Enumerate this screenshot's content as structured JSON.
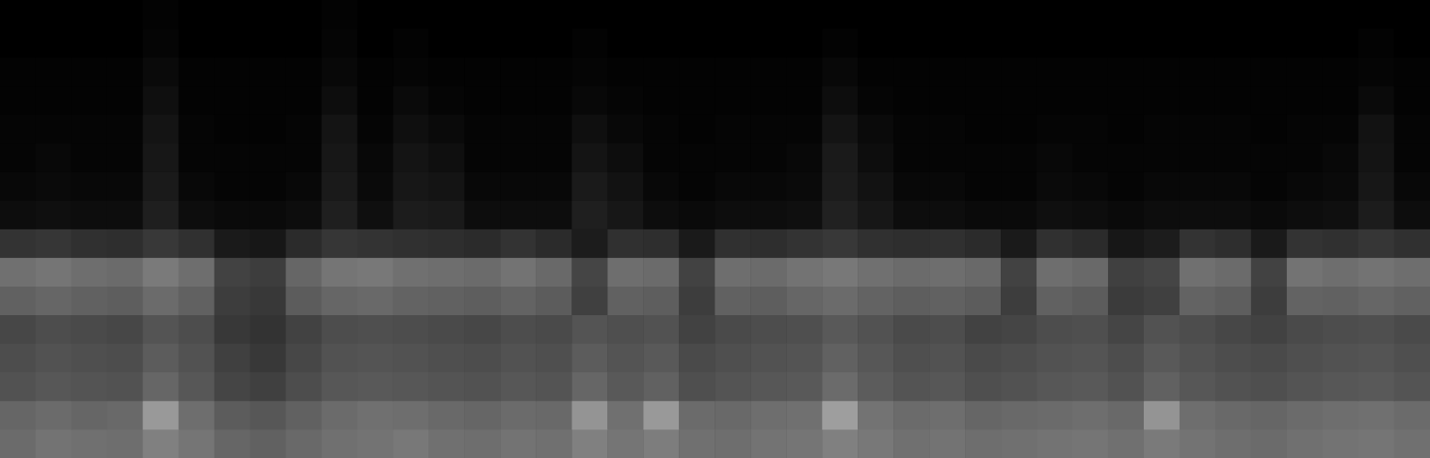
{
  "chart_data": {
    "type": "heatmap",
    "tick_labels": false,
    "grid": false,
    "color": "#ffffff",
    "value_range": [
      0,
      1
    ],
    "x": [
      0,
      1,
      2,
      3,
      4,
      5,
      6,
      7,
      8,
      9,
      10,
      11,
      12,
      13,
      14,
      15,
      16,
      17,
      18,
      19,
      20,
      21,
      22,
      23,
      24,
      25,
      26,
      27,
      28,
      29,
      30,
      31,
      32,
      33,
      34,
      35,
      36,
      37,
      38,
      39
    ],
    "y": [
      0,
      1,
      2,
      3,
      4,
      5,
      6,
      7,
      8,
      9,
      10,
      11,
      12,
      13,
      14,
      15
    ],
    "cells": [
      [
        0.42,
        0.45,
        0.44,
        0.43,
        0.5,
        0.46,
        0.4,
        0.38,
        0.41,
        0.44,
        0.45,
        0.47,
        0.44,
        0.43,
        0.45,
        0.44,
        0.5,
        0.46,
        0.49,
        0.44,
        0.43,
        0.45,
        0.46,
        0.5,
        0.47,
        0.44,
        0.45,
        0.43,
        0.44,
        0.45,
        0.46,
        0.44,
        0.48,
        0.45,
        0.43,
        0.42,
        0.44,
        0.45,
        0.46,
        0.44
      ],
      [
        0.4,
        0.42,
        0.4,
        0.41,
        0.6,
        0.43,
        0.36,
        0.34,
        0.38,
        0.42,
        0.44,
        0.43,
        0.41,
        0.4,
        0.42,
        0.41,
        0.58,
        0.44,
        0.6,
        0.42,
        0.41,
        0.43,
        0.44,
        0.62,
        0.45,
        0.42,
        0.43,
        0.4,
        0.41,
        0.42,
        0.43,
        0.41,
        0.58,
        0.43,
        0.41,
        0.4,
        0.42,
        0.43,
        0.44,
        0.42
      ],
      [
        0.32,
        0.34,
        0.33,
        0.32,
        0.4,
        0.34,
        0.27,
        0.25,
        0.3,
        0.34,
        0.35,
        0.34,
        0.33,
        0.32,
        0.34,
        0.33,
        0.4,
        0.35,
        0.38,
        0.31,
        0.33,
        0.34,
        0.35,
        0.42,
        0.36,
        0.33,
        0.34,
        0.31,
        0.32,
        0.34,
        0.35,
        0.32,
        0.38,
        0.34,
        0.32,
        0.31,
        0.33,
        0.34,
        0.35,
        0.33
      ],
      [
        0.3,
        0.32,
        0.31,
        0.3,
        0.36,
        0.32,
        0.25,
        0.22,
        0.28,
        0.32,
        0.33,
        0.32,
        0.31,
        0.3,
        0.32,
        0.31,
        0.36,
        0.33,
        0.35,
        0.29,
        0.31,
        0.32,
        0.33,
        0.38,
        0.34,
        0.31,
        0.32,
        0.29,
        0.3,
        0.32,
        0.33,
        0.3,
        0.35,
        0.32,
        0.3,
        0.29,
        0.31,
        0.32,
        0.33,
        0.31
      ],
      [
        0.28,
        0.3,
        0.29,
        0.28,
        0.33,
        0.3,
        0.22,
        0.2,
        0.26,
        0.3,
        0.31,
        0.3,
        0.29,
        0.28,
        0.3,
        0.29,
        0.33,
        0.31,
        0.32,
        0.26,
        0.29,
        0.3,
        0.31,
        0.35,
        0.32,
        0.29,
        0.3,
        0.26,
        0.27,
        0.3,
        0.31,
        0.27,
        0.32,
        0.3,
        0.28,
        0.26,
        0.29,
        0.3,
        0.31,
        0.29
      ],
      [
        0.38,
        0.4,
        0.38,
        0.37,
        0.42,
        0.38,
        0.24,
        0.22,
        0.36,
        0.4,
        0.41,
        0.39,
        0.38,
        0.37,
        0.39,
        0.36,
        0.25,
        0.38,
        0.37,
        0.24,
        0.38,
        0.37,
        0.4,
        0.42,
        0.39,
        0.37,
        0.38,
        0.36,
        0.24,
        0.38,
        0.36,
        0.23,
        0.25,
        0.39,
        0.37,
        0.24,
        0.39,
        0.38,
        0.4,
        0.38
      ],
      [
        0.44,
        0.46,
        0.43,
        0.42,
        0.48,
        0.43,
        0.26,
        0.24,
        0.4,
        0.46,
        0.47,
        0.44,
        0.43,
        0.42,
        0.45,
        0.41,
        0.27,
        0.43,
        0.42,
        0.26,
        0.43,
        0.42,
        0.45,
        0.47,
        0.44,
        0.42,
        0.43,
        0.41,
        0.26,
        0.43,
        0.41,
        0.25,
        0.27,
        0.44,
        0.42,
        0.26,
        0.45,
        0.43,
        0.45,
        0.43
      ],
      [
        0.2,
        0.21,
        0.19,
        0.18,
        0.22,
        0.19,
        0.1,
        0.09,
        0.17,
        0.21,
        0.2,
        0.19,
        0.18,
        0.17,
        0.2,
        0.17,
        0.11,
        0.19,
        0.18,
        0.1,
        0.19,
        0.18,
        0.2,
        0.22,
        0.19,
        0.18,
        0.19,
        0.17,
        0.1,
        0.19,
        0.17,
        0.09,
        0.11,
        0.2,
        0.18,
        0.1,
        0.2,
        0.19,
        0.21,
        0.19
      ],
      [
        0.05,
        0.06,
        0.05,
        0.05,
        0.12,
        0.05,
        0.04,
        0.04,
        0.05,
        0.12,
        0.06,
        0.11,
        0.1,
        0.05,
        0.05,
        0.05,
        0.12,
        0.09,
        0.05,
        0.04,
        0.05,
        0.05,
        0.06,
        0.13,
        0.09,
        0.05,
        0.05,
        0.04,
        0.04,
        0.06,
        0.05,
        0.04,
        0.05,
        0.05,
        0.05,
        0.04,
        0.05,
        0.06,
        0.11,
        0.05
      ],
      [
        0.03,
        0.04,
        0.03,
        0.03,
        0.1,
        0.03,
        0.02,
        0.02,
        0.03,
        0.1,
        0.04,
        0.09,
        0.08,
        0.03,
        0.03,
        0.03,
        0.1,
        0.07,
        0.03,
        0.02,
        0.03,
        0.03,
        0.04,
        0.11,
        0.07,
        0.03,
        0.03,
        0.02,
        0.02,
        0.04,
        0.03,
        0.02,
        0.03,
        0.03,
        0.03,
        0.02,
        0.03,
        0.04,
        0.09,
        0.03
      ],
      [
        0.02,
        0.03,
        0.02,
        0.02,
        0.09,
        0.02,
        0.02,
        0.02,
        0.02,
        0.09,
        0.03,
        0.08,
        0.06,
        0.02,
        0.02,
        0.02,
        0.08,
        0.05,
        0.02,
        0.02,
        0.02,
        0.02,
        0.03,
        0.1,
        0.05,
        0.02,
        0.02,
        0.02,
        0.02,
        0.03,
        0.02,
        0.02,
        0.02,
        0.02,
        0.02,
        0.02,
        0.02,
        0.03,
        0.08,
        0.02
      ],
      [
        0.02,
        0.02,
        0.02,
        0.02,
        0.08,
        0.02,
        0.01,
        0.01,
        0.02,
        0.08,
        0.02,
        0.06,
        0.04,
        0.02,
        0.02,
        0.02,
        0.06,
        0.03,
        0.02,
        0.01,
        0.02,
        0.02,
        0.02,
        0.08,
        0.04,
        0.02,
        0.02,
        0.01,
        0.01,
        0.02,
        0.02,
        0.01,
        0.02,
        0.02,
        0.02,
        0.01,
        0.02,
        0.02,
        0.07,
        0.02
      ],
      [
        0.01,
        0.01,
        0.01,
        0.01,
        0.06,
        0.01,
        0.01,
        0.01,
        0.01,
        0.05,
        0.01,
        0.04,
        0.02,
        0.01,
        0.01,
        0.01,
        0.03,
        0.02,
        0.01,
        0.01,
        0.01,
        0.01,
        0.01,
        0.05,
        0.02,
        0.01,
        0.01,
        0.01,
        0.01,
        0.01,
        0.01,
        0.01,
        0.01,
        0.01,
        0.01,
        0.01,
        0.01,
        0.01,
        0.04,
        0.01
      ],
      [
        0.01,
        0.01,
        0.01,
        0.01,
        0.04,
        0.01,
        0.01,
        0.01,
        0.01,
        0.03,
        0.01,
        0.02,
        0.01,
        0.01,
        0.01,
        0.01,
        0.02,
        0.01,
        0.01,
        0.01,
        0.01,
        0.01,
        0.01,
        0.03,
        0.01,
        0.01,
        0.01,
        0.01,
        0.01,
        0.01,
        0.01,
        0.01,
        0.01,
        0.01,
        0.01,
        0.01,
        0.01,
        0.01,
        0.02,
        0.01
      ],
      [
        0,
        0,
        0,
        0,
        0.02,
        0,
        0,
        0,
        0,
        0.02,
        0,
        0.01,
        0,
        0,
        0,
        0,
        0.01,
        0,
        0,
        0,
        0,
        0,
        0,
        0.01,
        0,
        0,
        0,
        0,
        0,
        0,
        0,
        0,
        0,
        0,
        0,
        0,
        0,
        0,
        0.01,
        0
      ],
      [
        0,
        0,
        0,
        0,
        0.01,
        0,
        0,
        0,
        0,
        0.01,
        0,
        0,
        0,
        0,
        0,
        0,
        0,
        0,
        0,
        0,
        0,
        0,
        0,
        0,
        0,
        0,
        0,
        0,
        0,
        0,
        0,
        0,
        0,
        0,
        0,
        0,
        0,
        0,
        0,
        0
      ]
    ]
  }
}
